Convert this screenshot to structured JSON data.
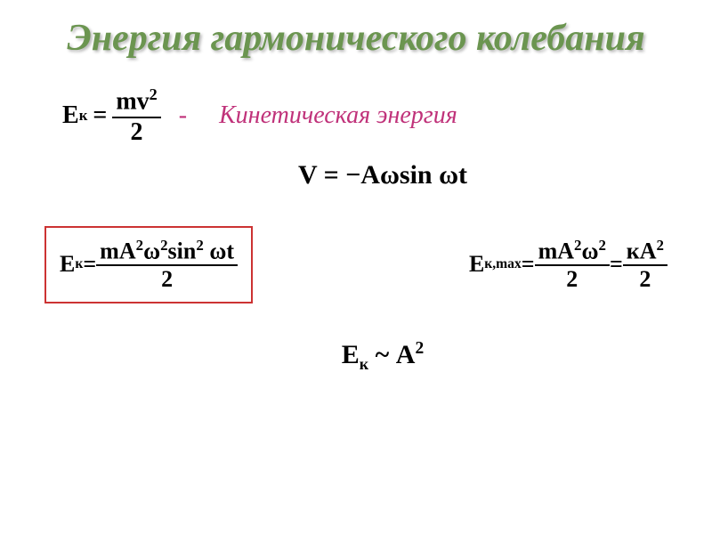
{
  "title": "Энергия гармонического колебания",
  "row1": {
    "lhs": "E",
    "lhs_sub": "к",
    "eq": "=",
    "num": "mv",
    "num_sup": "2",
    "den": "2",
    "dash": "-",
    "label": "Кинетическая энергия"
  },
  "row2": {
    "expr_v": "V",
    "expr_eq": " = ",
    "expr_minus": "−",
    "expr_A": "A",
    "expr_omega1": "ω",
    "expr_sin": "sin ",
    "expr_omega2": "ω",
    "expr_t": "t"
  },
  "row3a": {
    "lhs": "E",
    "lhs_sub": "к",
    "eq": " = ",
    "num_m": "m",
    "num_A": "A",
    "num_A_sup": "2",
    "num_omega": "ω",
    "num_omega_sup": "2",
    "num_sin": "sin",
    "num_sin_sup": "2",
    "num_omega_t": " ω",
    "num_t": "t",
    "den": "2"
  },
  "row3b": {
    "lhs": "E",
    "lhs_sub": "к,max",
    "eq1": " = ",
    "num1_m": "m",
    "num1_A": "A",
    "num1_A_sup": "2",
    "num1_omega": "ω",
    "num1_omega_sup": "2",
    "den1": "2",
    "eq2": " = ",
    "num2_k": "к",
    "num2_A": "A",
    "num2_A_sup": "2",
    "den2": "2"
  },
  "row4": {
    "lhs": "E",
    "lhs_sub": "к",
    "tilde": " ~ ",
    "A": "A",
    "sup": "2"
  },
  "colors": {
    "title": "#6b9550",
    "accent": "#c0327a",
    "box_border": "#cc3333",
    "text": "#000000",
    "background": "#ffffff"
  }
}
